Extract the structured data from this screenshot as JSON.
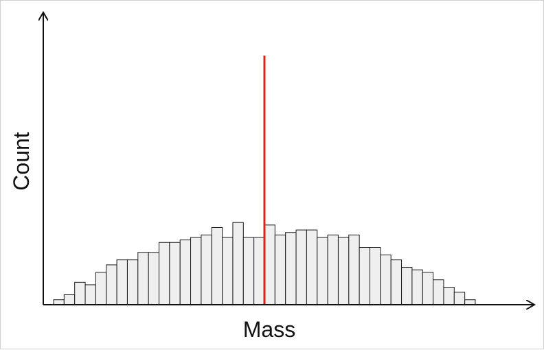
{
  "chart_data": {
    "type": "bar",
    "title": "",
    "xlabel": "Mass",
    "ylabel": "Count",
    "grid": false,
    "legend": "none",
    "ylim": [
      0,
      100
    ],
    "values": [
      2,
      4,
      9,
      8,
      13,
      16,
      18,
      18,
      21,
      21,
      25,
      25,
      26,
      27,
      28,
      31,
      27,
      33,
      27,
      27,
      32,
      28,
      29,
      30,
      30,
      27,
      28,
      27,
      28,
      23,
      23,
      20,
      18,
      15,
      14,
      13,
      10,
      7,
      5,
      2
    ],
    "reference_line": {
      "position": 20,
      "height": 100,
      "color": "#d7261e"
    },
    "colors": {
      "bar_fill": "#efefef",
      "bar_stroke": "#1a1a1a",
      "axis": "#111111"
    }
  }
}
